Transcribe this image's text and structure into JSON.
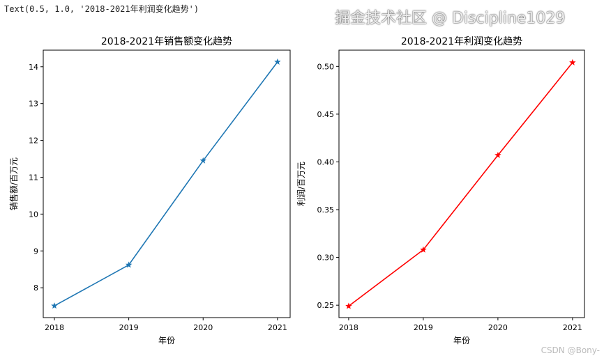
{
  "output_text": "Text(0.5, 1.0, '2018-2021年利润变化趋势')",
  "watermark": "掘金技术社区 @ Discipline1029",
  "watermark2": "CSDN @Bony-",
  "chart_data": [
    {
      "type": "line",
      "title": "2018-2021年销售额变化趋势",
      "xlabel": "年份",
      "ylabel": "销售额/百万元",
      "x": [
        2018,
        2019,
        2020,
        2021
      ],
      "values": [
        7.51,
        8.62,
        11.45,
        14.13
      ],
      "xticks": [
        "2018",
        "2019",
        "2020",
        "2021"
      ],
      "yticks": [
        8,
        9,
        10,
        11,
        12,
        13,
        14
      ],
      "xlim": [
        2017.85,
        2021.17
      ],
      "ylim": [
        7.19,
        14.45
      ],
      "color": "#1f77b4",
      "marker": "star",
      "grid": false
    },
    {
      "type": "line",
      "title": "2018-2021年利润变化趋势",
      "xlabel": "年份",
      "ylabel": "利润/百万元",
      "x": [
        2018,
        2019,
        2020,
        2021
      ],
      "values": [
        0.249,
        0.308,
        0.407,
        0.504
      ],
      "xticks": [
        "2018",
        "2019",
        "2020",
        "2021"
      ],
      "yticks": [
        "0.25",
        "0.30",
        "0.35",
        "0.40",
        "0.45",
        "0.50"
      ],
      "xlim": [
        2017.87,
        2021.16
      ],
      "ylim": [
        0.237,
        0.517
      ],
      "color": "#ff0000",
      "marker": "star",
      "grid": false
    }
  ]
}
